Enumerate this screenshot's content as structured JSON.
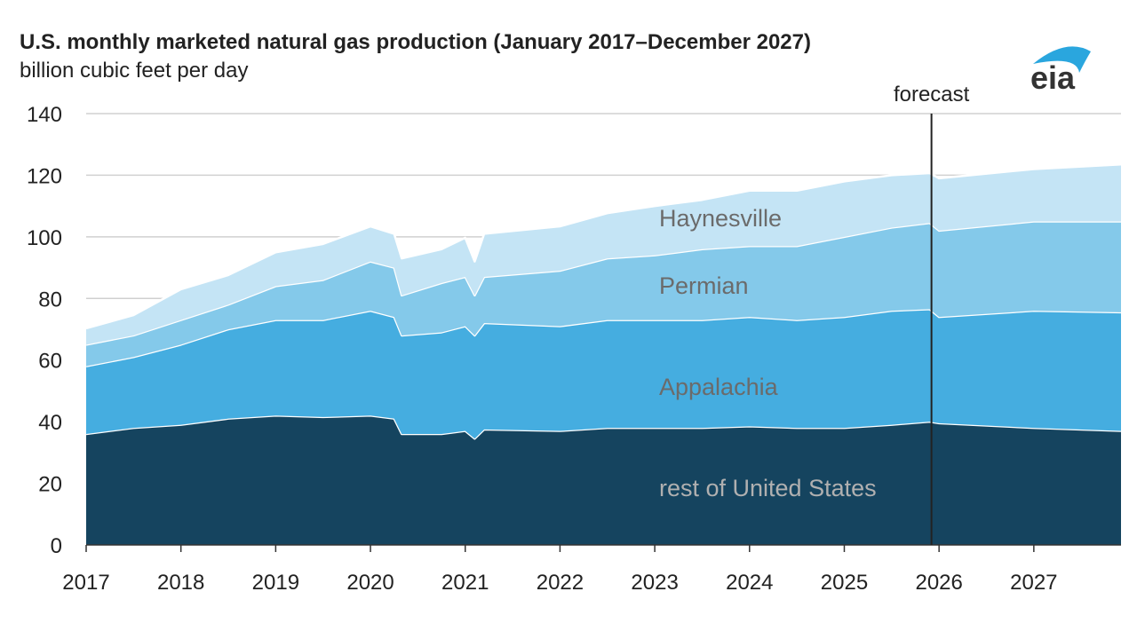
{
  "chart_data": {
    "type": "area",
    "stacked": true,
    "title": "U.S. monthly marketed natural gas production (January 2017–December 2027)",
    "ylabel": "billion cubic feet per day",
    "xlabel": "",
    "xlim": [
      2017.0,
      2027.92
    ],
    "ylim": [
      0,
      140
    ],
    "yticks": [
      0,
      20,
      40,
      60,
      80,
      100,
      120,
      140
    ],
    "xticks": [
      "2017",
      "2018",
      "2019",
      "2020",
      "2021",
      "2022",
      "2023",
      "2024",
      "2025",
      "2026",
      "2027"
    ],
    "grid": true,
    "forecast_start": 2025.92,
    "forecast_label": "forecast",
    "x": [
      2017.0,
      2017.5,
      2018.0,
      2018.5,
      2019.0,
      2019.5,
      2020.0,
      2020.25,
      2020.33,
      2020.75,
      2021.0,
      2021.1,
      2021.2,
      2022.0,
      2022.5,
      2023.0,
      2023.5,
      2024.0,
      2024.5,
      2025.0,
      2025.5,
      2025.9,
      2026.0,
      2027.0,
      2027.92
    ],
    "series": [
      {
        "name": "rest of United States",
        "color": "#15445f",
        "values": [
          36,
          38,
          39,
          41,
          42,
          41.5,
          42,
          41,
          36,
          36,
          37,
          34.5,
          37.5,
          37,
          38,
          38,
          38,
          38.5,
          38,
          38,
          39,
          40,
          39.5,
          38,
          37
        ]
      },
      {
        "name": "Appalachia",
        "color": "#45ade0",
        "values": [
          22,
          23,
          26,
          29,
          31,
          31.5,
          34,
          33,
          32,
          33,
          34,
          33.5,
          34.5,
          34,
          35,
          35,
          35,
          35.5,
          35,
          36,
          37,
          36.5,
          34.5,
          38,
          38.5
        ]
      },
      {
        "name": "Permian",
        "color": "#84c9ea",
        "values": [
          7,
          7,
          8,
          8,
          11,
          13,
          16,
          16,
          13,
          16,
          16,
          13,
          15,
          18,
          20,
          21,
          23,
          23,
          24,
          26,
          27,
          28,
          28,
          29,
          29.5
        ]
      },
      {
        "name": "Haynesville",
        "color": "#c4e4f5",
        "values": [
          5.3,
          6.6,
          10,
          9.6,
          11,
          11.7,
          11.4,
          11,
          12,
          11,
          12.7,
          11,
          14,
          14.4,
          14.7,
          16,
          16,
          18,
          18,
          18,
          17,
          16.2,
          17,
          17,
          18.5
        ]
      }
    ]
  },
  "logo_text": "eia"
}
